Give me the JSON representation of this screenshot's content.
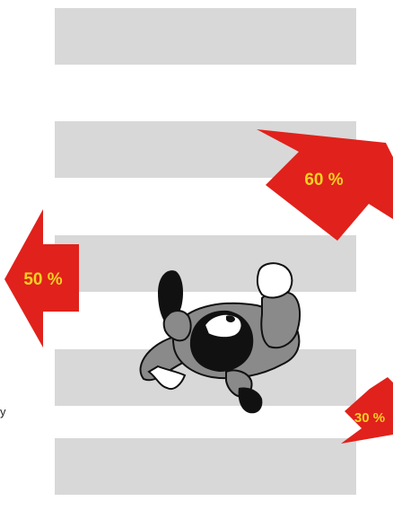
{
  "crossing": {
    "stripe_color": "#d8d8d8",
    "stripe_count": 5
  },
  "arrows": [
    {
      "id": "right-up",
      "direction": "up-right",
      "label": "60 %",
      "color": "#e1211b"
    },
    {
      "id": "left",
      "direction": "left",
      "label": "50 %",
      "color": "#e1211b"
    },
    {
      "id": "right-down",
      "direction": "down-right",
      "label": "30 %",
      "color": "#e1211b"
    }
  ],
  "label_color": "#f5d21f",
  "figure": {
    "icon": "pedestrian-top-view-icon",
    "body_color": "#8a8a8a",
    "dark_color": "#111111",
    "hand_color": "#ffffff"
  },
  "edge_mark": "y"
}
